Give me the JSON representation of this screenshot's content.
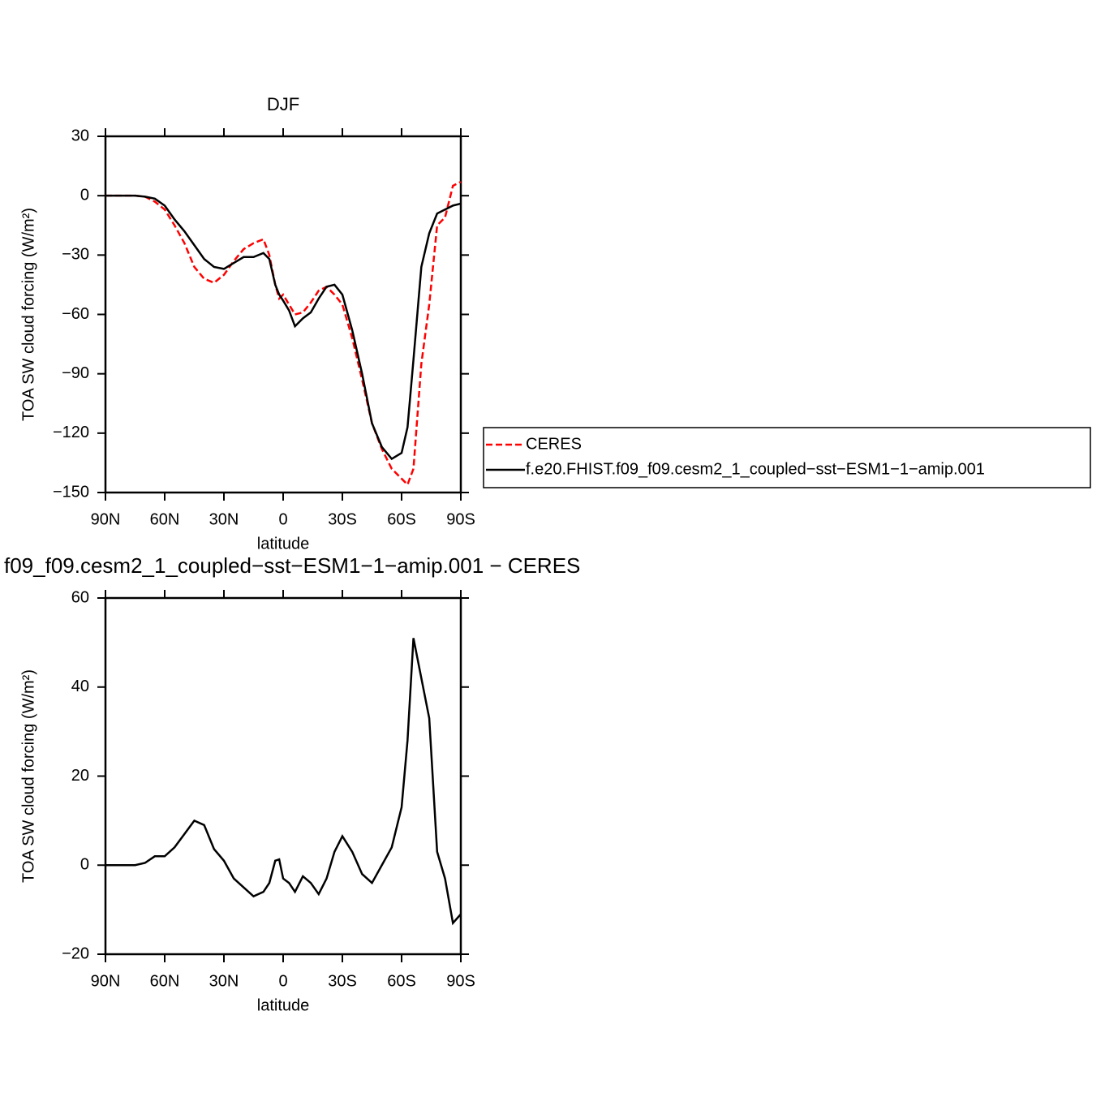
{
  "chart_data": [
    {
      "type": "line",
      "title": "DJF",
      "xlabel": "latitude",
      "ylabel": "TOA SW cloud forcing (W/m²)",
      "x": [
        90,
        85,
        80,
        75,
        70,
        65,
        60,
        55,
        50,
        45,
        40,
        35,
        30,
        25,
        20,
        15,
        10,
        7,
        4,
        2,
        0,
        -3,
        -6,
        -10,
        -14,
        -18,
        -22,
        -26,
        -30,
        -35,
        -40,
        -45,
        -50,
        -55,
        -60,
        -63,
        -66,
        -70,
        -74,
        -78,
        -82,
        -86,
        -90
      ],
      "series": [
        {
          "name": "CERES",
          "color": "#ff0000",
          "style": "dashed",
          "values": [
            0,
            0,
            0,
            0,
            -0.5,
            -3,
            -7,
            -15,
            -24,
            -36,
            -42,
            -44,
            -40,
            -33,
            -27,
            -24,
            -22,
            -30,
            -45,
            -52,
            -50,
            -55,
            -60,
            -59,
            -54,
            -48,
            -46,
            -50,
            -55,
            -72,
            -93,
            -115,
            -128,
            -138,
            -143,
            -146,
            -138,
            -85,
            -55,
            -15,
            -11,
            5,
            7
          ]
        },
        {
          "name": "f.e20.FHIST.f09_f09.cesm2_1_coupled−sst−ESM1−1−amip.001",
          "color": "#000000",
          "style": "solid",
          "values": [
            0,
            0,
            0,
            0,
            -0.5,
            -1.5,
            -5,
            -12,
            -18,
            -25,
            -32,
            -36,
            -37,
            -34,
            -31,
            -31,
            -29,
            -32,
            -45,
            -50,
            -53,
            -58,
            -66,
            -62,
            -59,
            -52,
            -46,
            -45,
            -50,
            -68,
            -90,
            -115,
            -127,
            -133,
            -130,
            -117,
            -83,
            -36,
            -19,
            -9,
            -7,
            -5,
            -4
          ]
        }
      ],
      "xlim": [
        90,
        -90
      ],
      "xticks": [
        {
          "value": 90,
          "label": "90N"
        },
        {
          "value": 60,
          "label": "60N"
        },
        {
          "value": 30,
          "label": "30N"
        },
        0,
        {
          "value": -30,
          "label": "30S"
        },
        {
          "value": -60,
          "label": "60S"
        },
        {
          "value": -90,
          "label": "90S"
        }
      ],
      "ylim": [
        -150,
        30
      ],
      "yticks": [
        {
          "value": -150,
          "label": "−150"
        },
        {
          "value": -120,
          "label": "−120"
        },
        {
          "value": -90,
          "label": "−90"
        },
        {
          "value": -60,
          "label": "−60"
        },
        {
          "value": -30,
          "label": "−30"
        },
        0,
        30
      ]
    },
    {
      "type": "line",
      "title": "f09_f09.cesm2_1_coupled−sst−ESM1−1−amip.001  −  CERES",
      "xlabel": "latitude",
      "ylabel": "TOA SW cloud forcing (W/m²)",
      "x": [
        90,
        85,
        80,
        75,
        70,
        65,
        60,
        55,
        50,
        45,
        40,
        35,
        30,
        25,
        20,
        15,
        10,
        7,
        4,
        2,
        0,
        -3,
        -6,
        -10,
        -14,
        -18,
        -22,
        -26,
        -30,
        -35,
        -40,
        -45,
        -50,
        -55,
        -60,
        -63,
        -66,
        -70,
        -74,
        -78,
        -82,
        -86,
        -90
      ],
      "color": "#000000",
      "values": [
        0,
        0,
        0,
        0,
        0.5,
        2,
        2,
        4,
        7,
        10,
        9,
        3.6,
        1,
        -3,
        -5,
        -7,
        -6,
        -4,
        1,
        1.3,
        -3,
        -4,
        -6,
        -2.5,
        -4,
        -6.5,
        -3,
        3,
        6.5,
        3,
        -2,
        -4,
        0,
        4,
        13,
        28,
        51,
        42,
        33,
        3,
        -3,
        -13,
        -11
      ],
      "xlim": [
        90,
        -90
      ],
      "xticks": [
        {
          "value": 90,
          "label": "90N"
        },
        {
          "value": 60,
          "label": "60N"
        },
        {
          "value": 30,
          "label": "30N"
        },
        0,
        {
          "value": -30,
          "label": "30S"
        },
        {
          "value": -60,
          "label": "60S"
        },
        {
          "value": -90,
          "label": "90S"
        }
      ],
      "ylim": [
        -20,
        60
      ],
      "yticks": [
        {
          "value": -20,
          "label": "−20"
        },
        0,
        20,
        40,
        60
      ]
    }
  ]
}
